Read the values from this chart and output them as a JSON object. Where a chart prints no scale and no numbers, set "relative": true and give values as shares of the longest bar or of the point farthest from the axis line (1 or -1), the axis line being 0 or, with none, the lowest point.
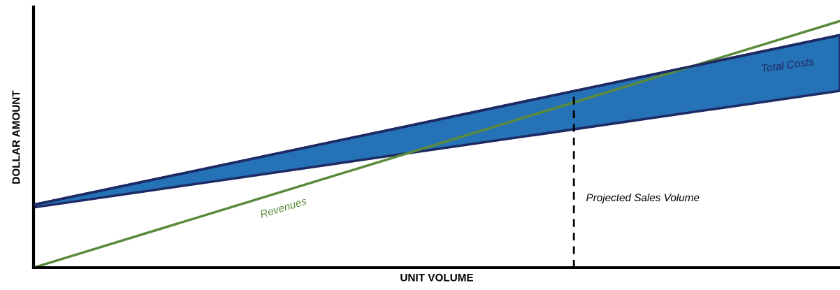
{
  "chart_data": {
    "type": "line",
    "relative": true,
    "xlabel": "UNIT VOLUME",
    "ylabel": "DOLLAR AMOUNT",
    "categories": [
      null,
      null
    ],
    "tick_labels": false,
    "series": [
      {
        "name": "Revenues",
        "color": "#5a8a3c",
        "values": [
          0,
          1
        ]
      },
      {
        "name": "Total Costs",
        "color": "#1d2a63",
        "values": [
          0.255,
          0.943
        ],
        "lower": [
          0.244,
          0.717
        ],
        "upper": [
          0.255,
          0.943
        ]
      }
    ],
    "ref_lines": [
      {
        "axis": "y",
        "value": 0,
        "color": "#000000"
      }
    ],
    "annotations": [
      "Projected Sales Volume"
    ]
  }
}
